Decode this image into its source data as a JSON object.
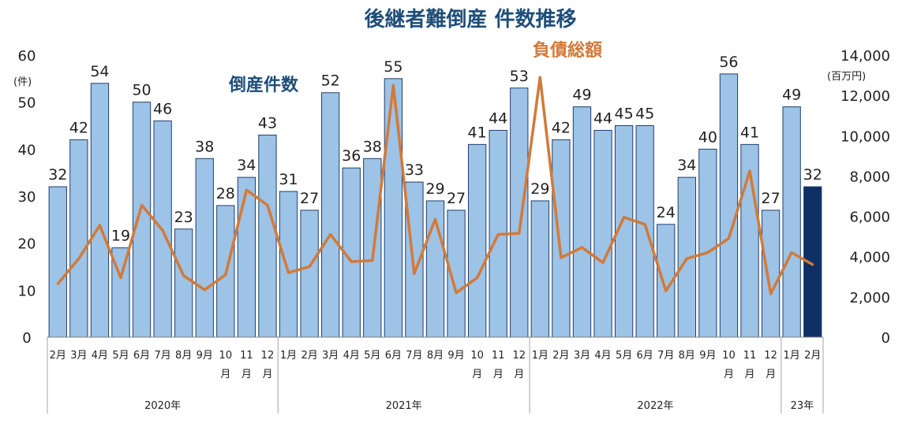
{
  "chart_data": {
    "type": "bar+line",
    "title": "後継者難倒産 件数推移",
    "left_axis": {
      "ylim": [
        0,
        60
      ],
      "ticks": [
        "0",
        "10",
        "20",
        "30",
        "40",
        "50",
        "60"
      ],
      "unit": "(件)"
    },
    "right_axis": {
      "ylim": [
        0,
        14000
      ],
      "ticks": [
        "0",
        "2,000",
        "4,000",
        "6,000",
        "8,000",
        "10,000",
        "12,000",
        "14,000"
      ],
      "unit": "(百万円)"
    },
    "categories": [
      [
        "2月"
      ],
      [
        "3月"
      ],
      [
        "4月"
      ],
      [
        "5月"
      ],
      [
        "6月"
      ],
      [
        "7月"
      ],
      [
        "8月"
      ],
      [
        "9月"
      ],
      [
        "10",
        "月"
      ],
      [
        "11",
        "月"
      ],
      [
        "12",
        "月"
      ],
      [
        "1月"
      ],
      [
        "2月"
      ],
      [
        "3月"
      ],
      [
        "4月"
      ],
      [
        "5月"
      ],
      [
        "6月"
      ],
      [
        "7月"
      ],
      [
        "8月"
      ],
      [
        "9月"
      ],
      [
        "10",
        "月"
      ],
      [
        "11",
        "月"
      ],
      [
        "12",
        "月"
      ],
      [
        "1月"
      ],
      [
        "2月"
      ],
      [
        "3月"
      ],
      [
        "4月"
      ],
      [
        "5月"
      ],
      [
        "6月"
      ],
      [
        "7月"
      ],
      [
        "8月"
      ],
      [
        "9月"
      ],
      [
        "10",
        "月"
      ],
      [
        "11",
        "月"
      ],
      [
        "12",
        "月"
      ],
      [
        "1月"
      ],
      [
        "2月"
      ]
    ],
    "year_groups": [
      {
        "label": "2020年",
        "count": 11
      },
      {
        "label": "2021年",
        "count": 12
      },
      {
        "label": "2022年",
        "count": 12
      },
      {
        "label": "23年",
        "count": 2
      }
    ],
    "series": [
      {
        "name": "倒産件数",
        "type": "bar",
        "axis": "left",
        "color": "#9dc3e6",
        "highlight_color": "#0f2f66",
        "highlight_index": 36,
        "values": [
          32,
          42,
          54,
          19,
          50,
          46,
          23,
          38,
          28,
          34,
          43,
          31,
          27,
          52,
          36,
          38,
          55,
          33,
          29,
          27,
          41,
          44,
          53,
          29,
          42,
          49,
          44,
          45,
          45,
          24,
          34,
          40,
          56,
          41,
          27,
          49,
          32
        ]
      },
      {
        "name": "負債総額",
        "type": "line",
        "axis": "right",
        "color": "#d27a3a",
        "values": [
          2650,
          3900,
          5550,
          2950,
          6550,
          5300,
          3050,
          2350,
          3100,
          7300,
          6550,
          3200,
          3500,
          5100,
          3750,
          3800,
          12500,
          3150,
          5850,
          2200,
          2950,
          5100,
          5150,
          12900,
          3950,
          4450,
          3700,
          5950,
          5600,
          2300,
          3900,
          4200,
          4900,
          8250,
          2150,
          4200,
          3600
        ]
      }
    ]
  }
}
